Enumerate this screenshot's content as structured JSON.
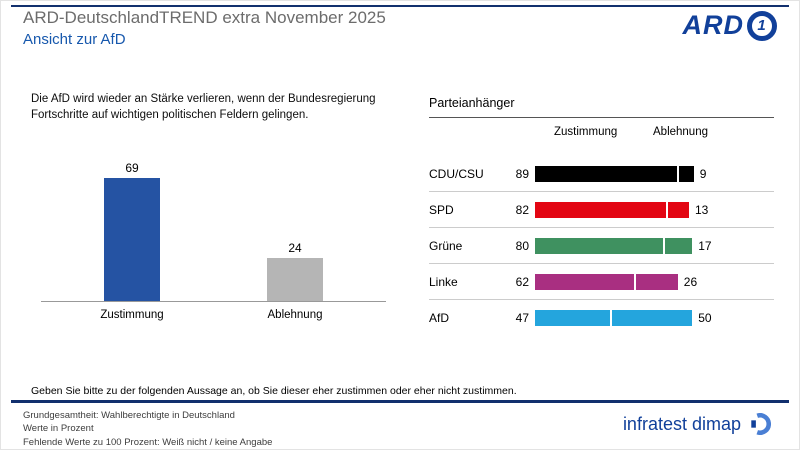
{
  "header": {
    "title": "ARD-DeutschlandTREND extra November 2025",
    "subtitle": "Ansicht zur AfD",
    "logo_text": "ARD",
    "logo_badge": "1"
  },
  "statement": "Die AfD wird wieder an Stärke verlieren, wenn der Bundesregierung Fortschritte auf wichtigen politischen Feldern gelingen.",
  "question_note": "Geben Sie bitte zu der folgenden Aussage an, ob Sie dieser eher zustimmen oder eher nicht zustimmen.",
  "footer": {
    "line1": "Grundgesamtheit: Wahlberechtigte in Deutschland",
    "line2": "Werte in Prozent",
    "line3": "Fehlende Werte zu 100 Prozent: Weiß nicht / keine Angabe",
    "brand": "infratest dimap"
  },
  "colors": {
    "accent_blue": "#1758ad",
    "rule_navy": "#12306e",
    "agree_bar": "#2553a3",
    "reject_bar": "#b5b5b5"
  },
  "chart_data": [
    {
      "type": "bar",
      "title": "",
      "categories": [
        "Zustimmung",
        "Ablehnung"
      ],
      "values": [
        69,
        24
      ],
      "colors": [
        "#2553a3",
        "#b5b5b5"
      ],
      "xlabel": "",
      "ylabel": "",
      "ylim": [
        0,
        100
      ],
      "unit": "Prozent",
      "grid": false,
      "legend": "none"
    },
    {
      "type": "bar",
      "title": "Parteianhänger",
      "orientation": "horizontal-stacked",
      "column_headers": [
        "Zustimmung",
        "Ablehnung"
      ],
      "categories": [
        "CDU/CSU",
        "SPD",
        "Grüne",
        "Linke",
        "AfD"
      ],
      "series": [
        {
          "name": "Zustimmung",
          "values": [
            89,
            82,
            80,
            62,
            47
          ]
        },
        {
          "name": "Ablehnung",
          "values": [
            9,
            13,
            17,
            26,
            50
          ]
        }
      ],
      "colors": [
        "#000000",
        "#e30613",
        "#3f9160",
        "#a92f81",
        "#24a5dd"
      ],
      "xlim": [
        0,
        100
      ],
      "unit": "Prozent",
      "grid": false,
      "legend": "column-headers"
    }
  ]
}
